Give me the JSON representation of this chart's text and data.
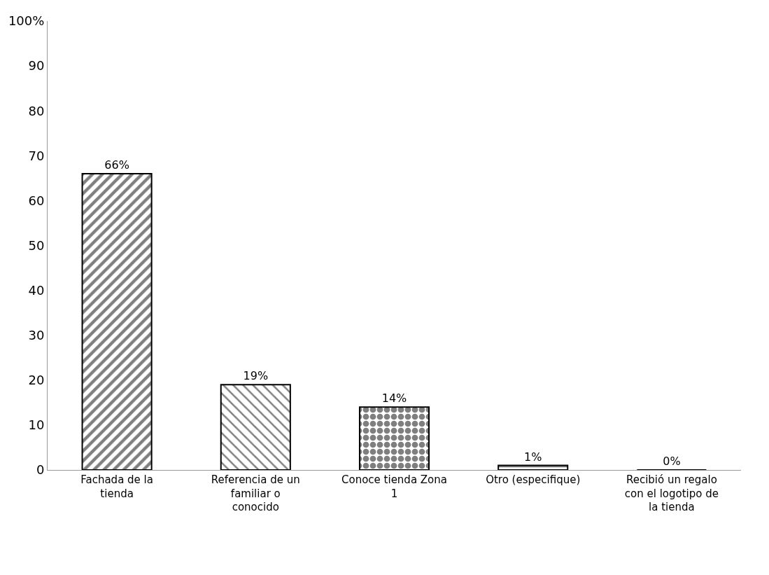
{
  "chart_data": {
    "type": "bar",
    "categories": [
      "Fachada de la tienda",
      "Referencia de un familiar o conocido",
      "Conoce tienda Zona 1",
      "Otro (especifique)",
      "Recibió un regalo con el logotipo de la tienda"
    ],
    "values": [
      66,
      19,
      14,
      1,
      0
    ],
    "value_labels": [
      "66%",
      "19%",
      "14%",
      "1%",
      "0%"
    ],
    "colors": [
      "#000000",
      "#000000",
      "#000000",
      "#000000",
      "#000000"
    ],
    "ylim": [
      0,
      100
    ],
    "yticks": [
      0,
      10,
      20,
      30,
      40,
      50,
      60,
      70,
      80,
      90,
      {
        "value": 100,
        "label": "100%"
      }
    ],
    "legend": false
  }
}
